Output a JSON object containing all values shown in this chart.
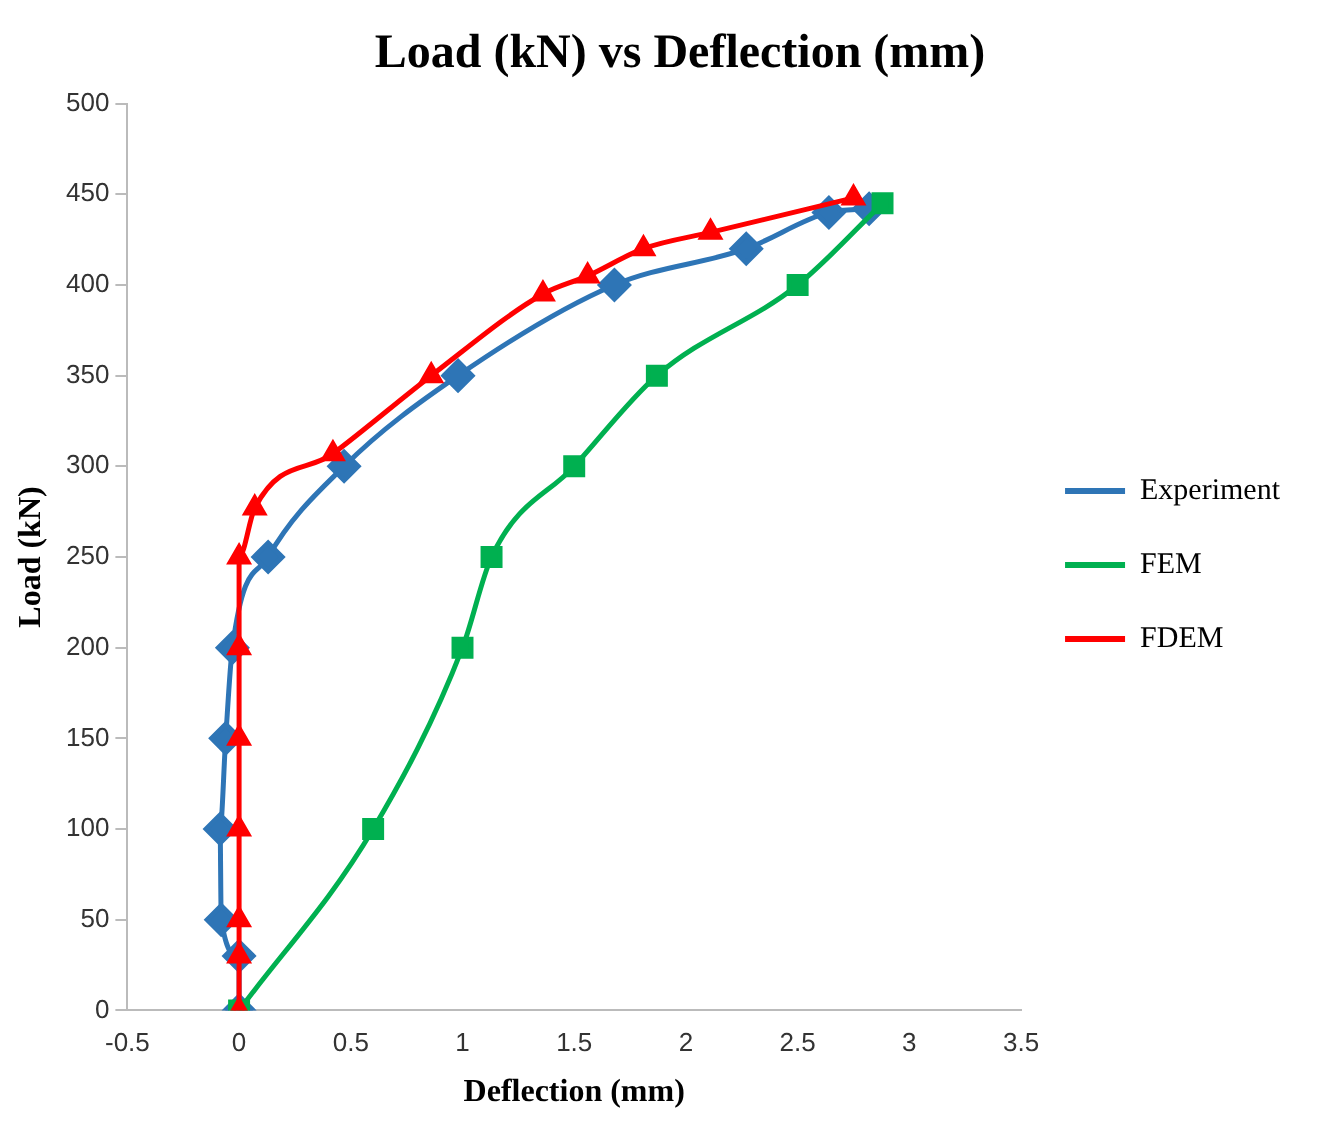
{
  "chart_data": {
    "type": "line",
    "title": "Load (kN) vs Deflection (mm)",
    "xlabel": "Deflection (mm)",
    "ylabel": "Load (kN)",
    "xlim": [
      -0.5,
      3.5
    ],
    "xticks": [
      -0.5,
      0,
      0.5,
      1,
      1.5,
      2,
      2.5,
      3,
      3.5
    ],
    "ylim": [
      0,
      500
    ],
    "yticks": [
      0,
      50,
      100,
      150,
      200,
      250,
      300,
      350,
      400,
      450,
      500
    ],
    "grid": false,
    "legend": "right",
    "series": [
      {
        "name": "Experiment",
        "color": "#2e75b6",
        "marker": "diamond",
        "x": [
          0,
          0,
          -0.08,
          -0.085,
          -0.06,
          -0.03,
          0.13,
          0.47,
          0.98,
          1.68,
          2.27,
          2.64,
          2.82
        ],
        "values": [
          0,
          30,
          50,
          100,
          150,
          200,
          250,
          300,
          350,
          400,
          420,
          440,
          442
        ]
      },
      {
        "name": "FEM",
        "color": "#00b050",
        "marker": "square",
        "x": [
          0,
          0.6,
          1,
          1.13,
          1.5,
          1.87,
          2.5,
          2.88
        ],
        "values": [
          0,
          100,
          200,
          250,
          300,
          350,
          400,
          445
        ]
      },
      {
        "name": "FDEM",
        "color": "#ff0000",
        "marker": "triangle",
        "x": [
          0,
          0,
          0,
          0,
          0,
          0,
          0,
          0.07,
          0.42,
          0.86,
          1.36,
          1.56,
          1.81,
          2.11,
          2.75
        ],
        "values": [
          0,
          30,
          50,
          100,
          150,
          200,
          250,
          277,
          307,
          350,
          395,
          405,
          420,
          429,
          448
        ]
      }
    ]
  }
}
